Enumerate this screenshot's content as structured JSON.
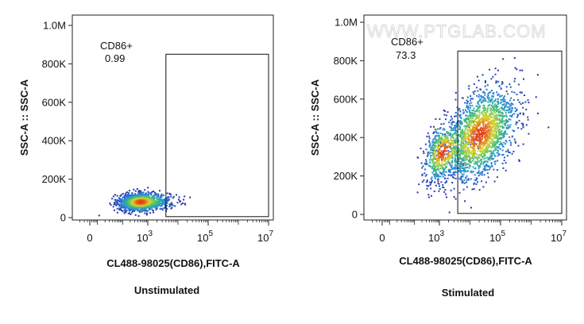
{
  "watermark": "WWW.PTGLAB.COM",
  "chart_data": [
    {
      "type": "scatter",
      "subtype": "flow-cytometry-density-dot-plot",
      "caption": "Unstimulated",
      "xlabel": "CL488-98025(CD86),FITC-A",
      "ylabel": "SSC-A :: SSC-A",
      "x_scale": "biexponential",
      "x_ticks": [
        {
          "base": "0",
          "exp": ""
        },
        {
          "base": "10",
          "exp": "3"
        },
        {
          "base": "10",
          "exp": "5"
        },
        {
          "base": "10",
          "exp": "7"
        }
      ],
      "y_ticks": [
        "0",
        "200K",
        "400K",
        "600K",
        "800K",
        "1.0M"
      ],
      "ylim": [
        0,
        1000000
      ],
      "gate": {
        "name": "CD86+",
        "percent": "0.99",
        "x_range": [
          3.6,
          7.0
        ],
        "y_range": [
          5000,
          850000
        ]
      },
      "population": {
        "clusters": [
          {
            "x_center": 2.6,
            "x_spread": 0.55,
            "y_center": 85000,
            "y_spread": 22000,
            "count": 1500
          }
        ]
      }
    },
    {
      "type": "scatter",
      "subtype": "flow-cytometry-density-dot-plot",
      "caption": "Stimulated",
      "xlabel": "CL488-98025(CD86),FITC-A",
      "ylabel": "SSC-A :: SSC-A",
      "x_scale": "biexponential",
      "x_ticks": [
        {
          "base": "0",
          "exp": ""
        },
        {
          "base": "10",
          "exp": "3"
        },
        {
          "base": "10",
          "exp": "5"
        },
        {
          "base": "10",
          "exp": "7"
        }
      ],
      "y_ticks": [
        "0",
        "200K",
        "400K",
        "600K",
        "800K",
        "1.0M"
      ],
      "ylim": [
        0,
        1000000
      ],
      "gate": {
        "name": "CD86+",
        "percent": "73.3",
        "x_range": [
          3.6,
          7.0
        ],
        "y_range": [
          5000,
          850000
        ]
      },
      "population": {
        "clusters": [
          {
            "x_center": 4.3,
            "x_spread": 0.6,
            "y_center": 420000,
            "y_spread": 110000,
            "count": 1800
          },
          {
            "x_center": 3.1,
            "x_spread": 0.45,
            "y_center": 330000,
            "y_spread": 70000,
            "count": 600
          }
        ]
      }
    }
  ]
}
